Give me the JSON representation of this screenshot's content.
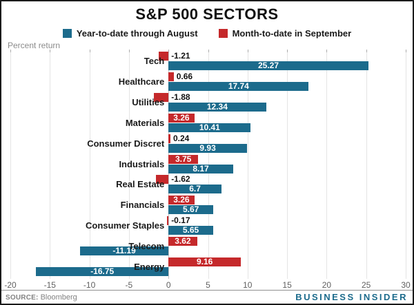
{
  "header": {
    "title": "S&P 500 SECTORS"
  },
  "legend": [
    {
      "label": "Year-to-date through August",
      "color": "#1c6b8c"
    },
    {
      "label": "Month-to-date in September",
      "color": "#c5292b"
    }
  ],
  "chart_data": {
    "type": "bar",
    "orientation": "horizontal",
    "title": "S&P 500 SECTORS",
    "xlabel": "Percent return",
    "categories": [
      "Tech",
      "Healthcare",
      "Utilities",
      "Materials",
      "Consumer Discret",
      "Industrials",
      "Real Estate",
      "Financials",
      "Consumer Staples",
      "Telecom",
      "Energy"
    ],
    "series": [
      {
        "name": "Year-to-date through August",
        "color": "#1c6b8c",
        "values": [
          25.27,
          17.74,
          12.34,
          10.41,
          9.93,
          8.17,
          6.7,
          5.67,
          5.65,
          -11.19,
          -16.75
        ]
      },
      {
        "name": "Month-to-date in September",
        "color": "#c5292b",
        "values": [
          -1.21,
          0.66,
          -1.88,
          3.26,
          0.24,
          3.75,
          -1.62,
          3.26,
          -0.17,
          3.62,
          9.16
        ]
      }
    ],
    "xlim": [
      -20,
      30
    ],
    "xticks": [
      -20,
      -15,
      -10,
      -5,
      0,
      5,
      10,
      15,
      20,
      25,
      30
    ],
    "grid": true,
    "legend_position": "top"
  },
  "footer": {
    "source_label": "SOURCE:",
    "source_value": "Bloomberg",
    "brand": "BUSINESS INSIDER"
  },
  "colors": {
    "ytd": "#1c6b8c",
    "mtd": "#c5292b",
    "grid": "#e4e4e4",
    "zero_line": "#c2c2c2",
    "axis_text": "#5f5f5f",
    "brand_blue": "#1c6b8c"
  }
}
